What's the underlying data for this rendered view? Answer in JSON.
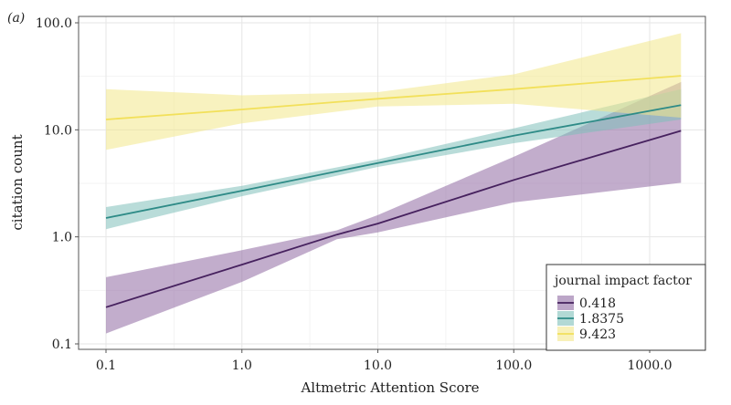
{
  "panel_label": "(a)",
  "chart_data": {
    "type": "line",
    "xlabel": "Altmetric Attention Score",
    "ylabel": "citation count",
    "xscale": "log",
    "yscale": "log",
    "xlim": [
      0.1,
      1700
    ],
    "ylim": [
      0.1,
      100
    ],
    "xticks": [
      0.1,
      1,
      10,
      100,
      1000
    ],
    "xtick_labels": [
      "0.1",
      "1.0",
      "10.0",
      "100.0",
      "1000.0"
    ],
    "yticks": [
      0.1,
      1,
      10,
      100
    ],
    "ytick_labels": [
      "0.1",
      "1.0",
      "10.0",
      "100.0"
    ],
    "grid": true,
    "legend": {
      "title": "journal impact factor",
      "placement": "bottom-right"
    },
    "series": [
      {
        "name": "0.418",
        "color": "#46215e",
        "band_color": "#8f6aa3",
        "points": [
          {
            "x": 0.1,
            "y": 0.22,
            "lo": 0.125,
            "hi": 0.42
          },
          {
            "x": 1,
            "y": 0.55,
            "lo": 0.38,
            "hi": 0.75
          },
          {
            "x": 5,
            "y": 1.05,
            "lo": 0.95,
            "hi": 1.15
          },
          {
            "x": 10,
            "y": 1.33,
            "lo": 1.1,
            "hi": 1.6
          },
          {
            "x": 100,
            "y": 3.4,
            "lo": 2.1,
            "hi": 5.6
          },
          {
            "x": 1700,
            "y": 9.8,
            "lo": 3.2,
            "hi": 28
          }
        ]
      },
      {
        "name": "1.8375",
        "color": "#2e8b87",
        "band_color": "#7fbfb9",
        "points": [
          {
            "x": 0.1,
            "y": 1.5,
            "lo": 1.18,
            "hi": 1.9
          },
          {
            "x": 1,
            "y": 2.7,
            "lo": 2.4,
            "hi": 3.0
          },
          {
            "x": 10,
            "y": 4.9,
            "lo": 4.5,
            "hi": 5.3
          },
          {
            "x": 100,
            "y": 8.8,
            "lo": 7.5,
            "hi": 10.3
          },
          {
            "x": 1700,
            "y": 17,
            "lo": 12.5,
            "hi": 24
          }
        ]
      },
      {
        "name": "9.423",
        "color": "#f2e05a",
        "band_color": "#f3e88a",
        "points": [
          {
            "x": 0.1,
            "y": 12.5,
            "lo": 6.5,
            "hi": 24
          },
          {
            "x": 1,
            "y": 15.5,
            "lo": 11.5,
            "hi": 21
          },
          {
            "x": 10,
            "y": 19.5,
            "lo": 16.5,
            "hi": 22.5
          },
          {
            "x": 100,
            "y": 24,
            "lo": 17.5,
            "hi": 33
          },
          {
            "x": 1700,
            "y": 32,
            "lo": 13,
            "hi": 80
          }
        ]
      }
    ]
  }
}
